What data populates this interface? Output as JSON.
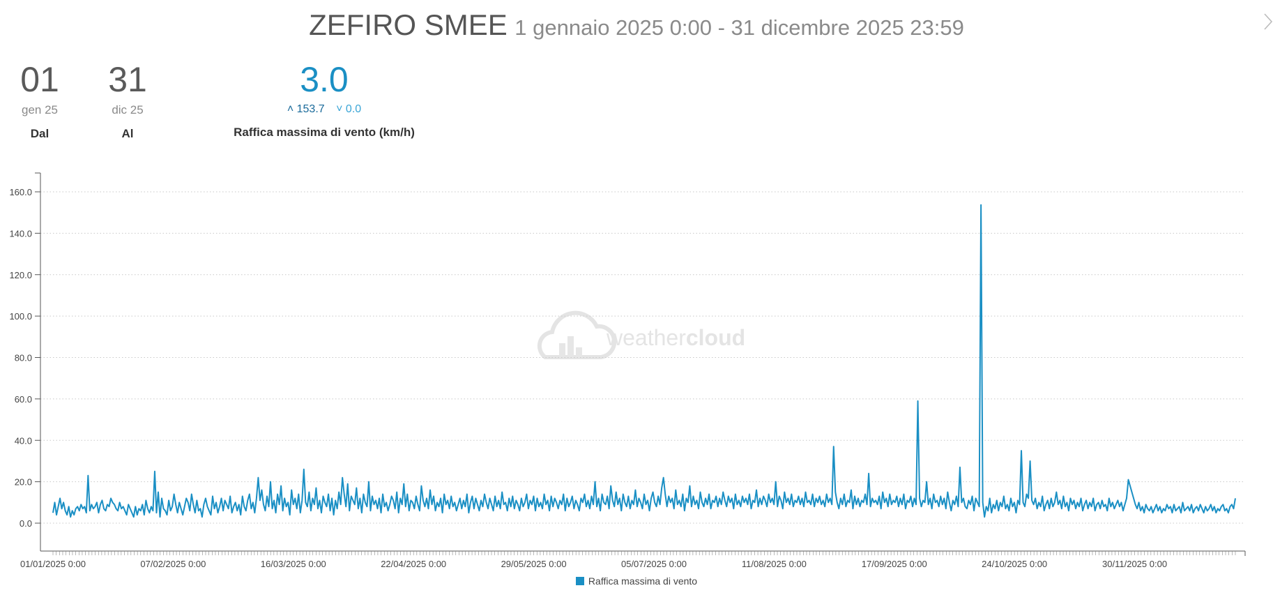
{
  "header": {
    "station": "ZEFIRO SMEE",
    "range": "1 gennaio 2025 0:00 - 31 dicembre 2025 23:59"
  },
  "stats": {
    "from": {
      "value": "01",
      "sub": "gen 25",
      "label": "Dal"
    },
    "to": {
      "value": "31",
      "sub": "dic 25",
      "label": "Al"
    },
    "gust": {
      "value": "3.0",
      "max": "153.7",
      "min": "0.0",
      "label": "Raffica massima di vento (km/h)"
    }
  },
  "legend": {
    "label": "Raffica massima di vento"
  },
  "watermark": {
    "text_light": "weather",
    "text_bold": "cloud"
  },
  "colors": {
    "series": "#1a8fc4",
    "grid": "#c8c8c8",
    "axis": "#555555",
    "watermark": "#e4e4e4"
  },
  "chart_data": {
    "type": "line",
    "x_type": "datetime",
    "x_range": [
      "01/01/2025 0:00",
      "31/12/2025 0:00"
    ],
    "x_ticks": [
      "01/01/2025 0:00",
      "07/02/2025 0:00",
      "16/03/2025 0:00",
      "22/04/2025 0:00",
      "29/05/2025 0:00",
      "05/07/2025 0:00",
      "11/08/2025 0:00",
      "17/09/2025 0:00",
      "24/10/2025 0:00",
      "30/11/2025 0:00"
    ],
    "ylim": [
      0,
      160
    ],
    "y_ticks": [
      "0.0",
      "20.0",
      "40.0",
      "60.0",
      "80.0",
      "100.0",
      "120.0",
      "140.0",
      "160.0"
    ],
    "grid": true,
    "legend_position": "bottom-center",
    "series": [
      {
        "name": "Raffica massima di vento",
        "sampling": "half-day",
        "values": [
          5,
          10,
          4,
          8,
          12,
          7,
          10,
          6,
          4,
          8,
          3,
          6,
          4,
          7,
          8,
          6,
          9,
          7,
          8,
          5,
          23,
          6,
          9,
          7,
          8,
          10,
          5,
          9,
          11,
          7,
          6,
          9,
          8,
          12,
          10,
          9,
          7,
          6,
          10,
          7,
          8,
          6,
          4,
          9,
          7,
          5,
          3,
          8,
          4,
          7,
          6,
          9,
          4,
          11,
          7,
          5,
          8,
          6,
          25,
          5,
          15,
          3,
          12,
          7,
          6,
          4,
          11,
          6,
          8,
          14,
          9,
          5,
          10,
          7,
          4,
          8,
          12,
          10,
          6,
          14,
          9,
          5,
          11,
          6,
          7,
          3,
          9,
          12,
          8,
          6,
          4,
          13,
          7,
          10,
          5,
          8,
          12,
          6,
          11,
          9,
          7,
          13,
          5,
          8,
          10,
          6,
          9,
          4,
          13,
          8,
          6,
          11,
          14,
          7,
          10,
          5,
          12,
          22,
          11,
          16,
          9,
          6,
          13,
          8,
          20,
          7,
          11,
          5,
          14,
          9,
          18,
          6,
          12,
          8,
          10,
          4,
          16,
          9,
          12,
          7,
          14,
          5,
          11,
          26,
          10,
          8,
          15,
          6,
          12,
          9,
          17,
          7,
          11,
          5,
          13,
          10,
          8,
          14,
          6,
          12,
          4,
          11,
          7,
          15,
          9,
          22,
          14,
          8,
          19,
          6,
          13,
          11,
          9,
          17,
          7,
          12,
          5,
          14,
          10,
          8,
          20,
          6,
          13,
          9,
          11,
          7,
          12,
          5,
          14,
          8,
          10,
          6,
          9,
          13,
          11,
          7,
          15,
          5,
          12,
          9,
          19,
          8,
          14,
          6,
          11,
          10,
          7,
          13,
          9,
          6,
          18,
          11,
          8,
          12,
          7,
          16,
          9,
          13,
          6,
          10,
          8,
          12,
          5,
          14,
          9,
          11,
          7,
          13,
          8,
          10,
          6,
          9,
          12,
          7,
          11,
          8,
          14,
          5,
          10,
          13,
          7,
          12,
          9,
          6,
          11,
          8,
          14,
          10,
          7,
          12,
          9,
          6,
          13,
          8,
          11,
          7,
          15,
          9,
          10,
          6,
          12,
          8,
          13,
          7,
          11,
          9,
          6,
          12,
          8,
          10,
          14,
          7,
          11,
          9,
          13,
          6,
          12,
          8,
          10,
          7,
          14,
          9,
          11,
          6,
          13,
          8,
          12,
          10,
          7,
          11,
          9,
          14,
          6,
          12,
          8,
          10,
          13,
          7,
          11,
          9,
          6,
          12,
          10,
          14,
          8,
          11,
          7,
          13,
          9,
          20,
          8,
          12,
          6,
          14,
          10,
          9,
          13,
          7,
          18,
          11,
          8,
          15,
          9,
          12,
          6,
          14,
          10,
          8,
          13,
          7,
          11,
          9,
          16,
          8,
          12,
          10,
          7,
          14,
          9,
          11,
          6,
          12,
          15,
          10,
          8,
          13,
          9,
          17,
          22,
          14,
          8,
          13,
          10,
          12,
          7,
          16,
          9,
          11,
          8,
          14,
          6,
          12,
          10,
          18,
          8,
          13,
          9,
          11,
          7,
          15,
          10,
          8,
          12,
          9,
          14,
          7,
          11,
          10,
          13,
          8,
          12,
          9,
          15,
          11,
          8,
          13,
          10,
          12,
          7,
          14,
          9,
          11,
          8,
          13,
          10,
          12,
          9,
          14,
          7,
          11,
          10,
          16,
          8,
          12,
          9,
          13,
          11,
          8,
          14,
          10,
          12,
          9,
          20,
          8,
          13,
          11,
          7,
          15,
          10,
          12,
          9,
          14,
          8,
          11,
          10,
          13,
          9,
          12,
          8,
          15,
          10,
          11,
          9,
          14,
          8,
          12,
          10,
          13,
          9,
          11,
          8,
          14,
          10,
          12,
          9,
          37,
          15,
          10,
          7,
          12,
          9,
          14,
          8,
          11,
          10,
          16,
          7,
          13,
          9,
          12,
          8,
          11,
          10,
          14,
          9,
          24,
          8,
          12,
          10,
          11,
          9,
          13,
          7,
          15,
          10,
          12,
          8,
          14,
          9,
          11,
          10,
          13,
          8,
          12,
          9,
          14,
          7,
          11,
          10,
          13,
          8,
          12,
          9,
          59,
          12,
          8,
          11,
          10,
          20,
          9,
          12,
          7,
          14,
          10,
          11,
          8,
          13,
          9,
          12,
          7,
          15,
          10,
          6,
          11,
          9,
          13,
          8,
          27,
          10,
          12,
          8,
          7,
          11,
          9,
          13,
          6,
          12,
          10,
          8,
          153.7,
          10,
          3,
          8,
          6,
          12,
          5,
          9,
          7,
          11,
          6,
          10,
          8,
          13,
          7,
          9,
          6,
          12,
          8,
          10,
          5,
          11,
          9,
          35,
          10,
          8,
          14,
          12,
          30,
          11,
          9,
          12,
          7,
          10,
          8,
          13,
          6,
          9,
          11,
          7,
          12,
          8,
          10,
          15,
          9,
          11,
          7,
          13,
          8,
          10,
          6,
          12,
          9,
          11,
          7,
          10,
          8,
          12,
          6,
          9,
          11,
          7,
          10,
          8,
          12,
          6,
          9,
          10,
          7,
          11,
          8,
          9,
          6,
          12,
          8,
          10,
          7,
          9,
          11,
          8,
          10,
          6,
          9,
          12,
          21,
          18,
          15,
          12,
          9,
          7,
          10,
          6,
          8,
          5,
          9,
          7,
          6,
          8,
          5,
          7,
          9,
          6,
          8,
          5,
          7,
          6,
          9,
          7,
          8,
          5,
          9,
          6,
          7,
          8,
          5,
          10,
          6,
          7,
          8,
          6,
          9,
          5,
          7,
          8,
          6,
          9,
          7,
          5,
          8,
          6,
          7,
          9,
          6,
          8,
          5,
          7,
          6,
          8,
          9,
          6,
          7,
          5,
          8,
          9,
          7,
          12
        ]
      }
    ]
  }
}
